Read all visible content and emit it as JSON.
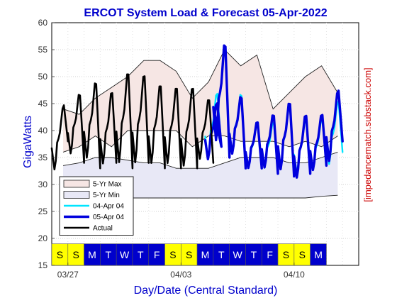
{
  "chart_data": {
    "type": "line",
    "title": "ERCOT System Load & Forecast 05-Apr-2022",
    "xlabel": "Day/Date (Central Standard)",
    "ylabel": "GigaWatts",
    "side_label": "[impedancematch.substack.com]",
    "ylim": [
      15,
      60
    ],
    "yticks": [
      15,
      20,
      25,
      30,
      35,
      40,
      45,
      50,
      55,
      60
    ],
    "x_unit": "days from 03/26",
    "xlim": [
      0,
      19
    ],
    "date_ticks": [
      {
        "label": "03/27",
        "x": 1
      },
      {
        "label": "04/03",
        "x": 8
      },
      {
        "label": "04/10",
        "x": 15
      }
    ],
    "day_strip": {
      "labels": [
        "S",
        "S",
        "M",
        "T",
        "W",
        "T",
        "F",
        "S",
        "S",
        "M",
        "T",
        "W",
        "T",
        "F",
        "S",
        "S",
        "M"
      ],
      "weekend_color": "#ffff00",
      "weekday_color": "#0000cc"
    },
    "legend": {
      "position": "lower-left",
      "entries": [
        "5-Yr Max",
        "5-Yr Min",
        "04-Apr 04",
        "05-Apr 04",
        "Actual"
      ]
    },
    "max_band": {
      "x": [
        0.7,
        1.7,
        2.7,
        3.7,
        4.7,
        5.7,
        6.7,
        7.7,
        8.7,
        9.7,
        10.7,
        11.7,
        12.7,
        13.7,
        14.7,
        15.7,
        16.7,
        17.7
      ],
      "upper": [
        44,
        43,
        46,
        48,
        50,
        53,
        53,
        51,
        46,
        49,
        55,
        52,
        54,
        44,
        47,
        50,
        52,
        47
      ],
      "lower": [
        36,
        37,
        39,
        37,
        40,
        40,
        40,
        40,
        37,
        39,
        39,
        38,
        38,
        38,
        37,
        38,
        37,
        39
      ]
    },
    "min_band": {
      "x": [
        0.7,
        1.7,
        2.7,
        3.7,
        4.7,
        5.7,
        6.7,
        7.7,
        8.7,
        9.7,
        10.7,
        11.7,
        12.7,
        13.7,
        14.7,
        15.7,
        16.7,
        17.7
      ],
      "upper": [
        33.5,
        34,
        35,
        35,
        34.5,
        34,
        34,
        33,
        33,
        33,
        34,
        35,
        35,
        35,
        34,
        34,
        35,
        36
      ],
      "lower": [
        27.5,
        27.5,
        27.5,
        27.5,
        27.5,
        27.5,
        27.5,
        27.5,
        27.5,
        27.5,
        27.5,
        27.5,
        27.5,
        27.5,
        27.5,
        27.5,
        27.8,
        28
      ]
    },
    "daily_series": [
      {
        "name": "Actual",
        "color": "#000000",
        "days": [
          {
            "x0": 0,
            "min": 32,
            "max": 45.5,
            "end": 38
          },
          {
            "x0": 1,
            "min": 35,
            "max": 48,
            "end": 34
          },
          {
            "x0": 2,
            "min": 34,
            "max": 50.5,
            "end": 33
          },
          {
            "x0": 3,
            "min": 33,
            "max": 48.5,
            "end": 34
          },
          {
            "x0": 4,
            "min": 33,
            "max": 52.5,
            "end": 33
          },
          {
            "x0": 5,
            "min": 33,
            "max": 52,
            "end": 34
          },
          {
            "x0": 6,
            "min": 33,
            "max": 50,
            "end": 33
          },
          {
            "x0": 7,
            "min": 33,
            "max": 49.5,
            "end": 33
          },
          {
            "x0": 8,
            "min": 32.5,
            "max": 49.5,
            "end": 33
          },
          {
            "x0": 9,
            "min": 34,
            "max": 47,
            "end": 34
          }
        ]
      },
      {
        "name": "05-Apr 04",
        "color": "#0000dd",
        "days": [
          {
            "x0": 9.5,
            "min": 34,
            "max": 46,
            "end": 37
          },
          {
            "x0": 10,
            "min": 37,
            "max": 58,
            "end": 35
          },
          {
            "x0": 11,
            "min": 35,
            "max": 47.5,
            "end": 33
          },
          {
            "x0": 12,
            "min": 32.5,
            "max": 42.5,
            "end": 33
          },
          {
            "x0": 13,
            "min": 32.5,
            "max": 44,
            "end": 32
          },
          {
            "x0": 14,
            "min": 32,
            "max": 46.5,
            "end": 31.5
          },
          {
            "x0": 15,
            "min": 30.5,
            "max": 44,
            "end": 32
          },
          {
            "x0": 16,
            "min": 32,
            "max": 44,
            "end": 33.5
          },
          {
            "x0": 17,
            "min": 33.5,
            "max": 48.5,
            "end": 38
          }
        ]
      },
      {
        "name": "04-Apr 04",
        "color": "#00e5ff",
        "days": [
          {
            "x0": 9.5,
            "min": 34,
            "max": 48,
            "end": 37
          },
          {
            "x0": 10,
            "min": 37,
            "max": 57.5,
            "end": 35
          },
          {
            "x0": 11,
            "min": 35,
            "max": 48,
            "end": 33
          },
          {
            "x0": 12,
            "min": 32.5,
            "max": 42,
            "end": 33
          },
          {
            "x0": 13,
            "min": 32.5,
            "max": 42.5,
            "end": 32
          },
          {
            "x0": 14,
            "min": 32,
            "max": 46,
            "end": 31.5
          },
          {
            "x0": 15,
            "min": 31.5,
            "max": 43,
            "end": 32
          },
          {
            "x0": 16,
            "min": 32,
            "max": 43,
            "end": 33.5
          },
          {
            "x0": 17,
            "min": 33,
            "max": 46.5,
            "end": 36
          }
        ]
      }
    ]
  }
}
